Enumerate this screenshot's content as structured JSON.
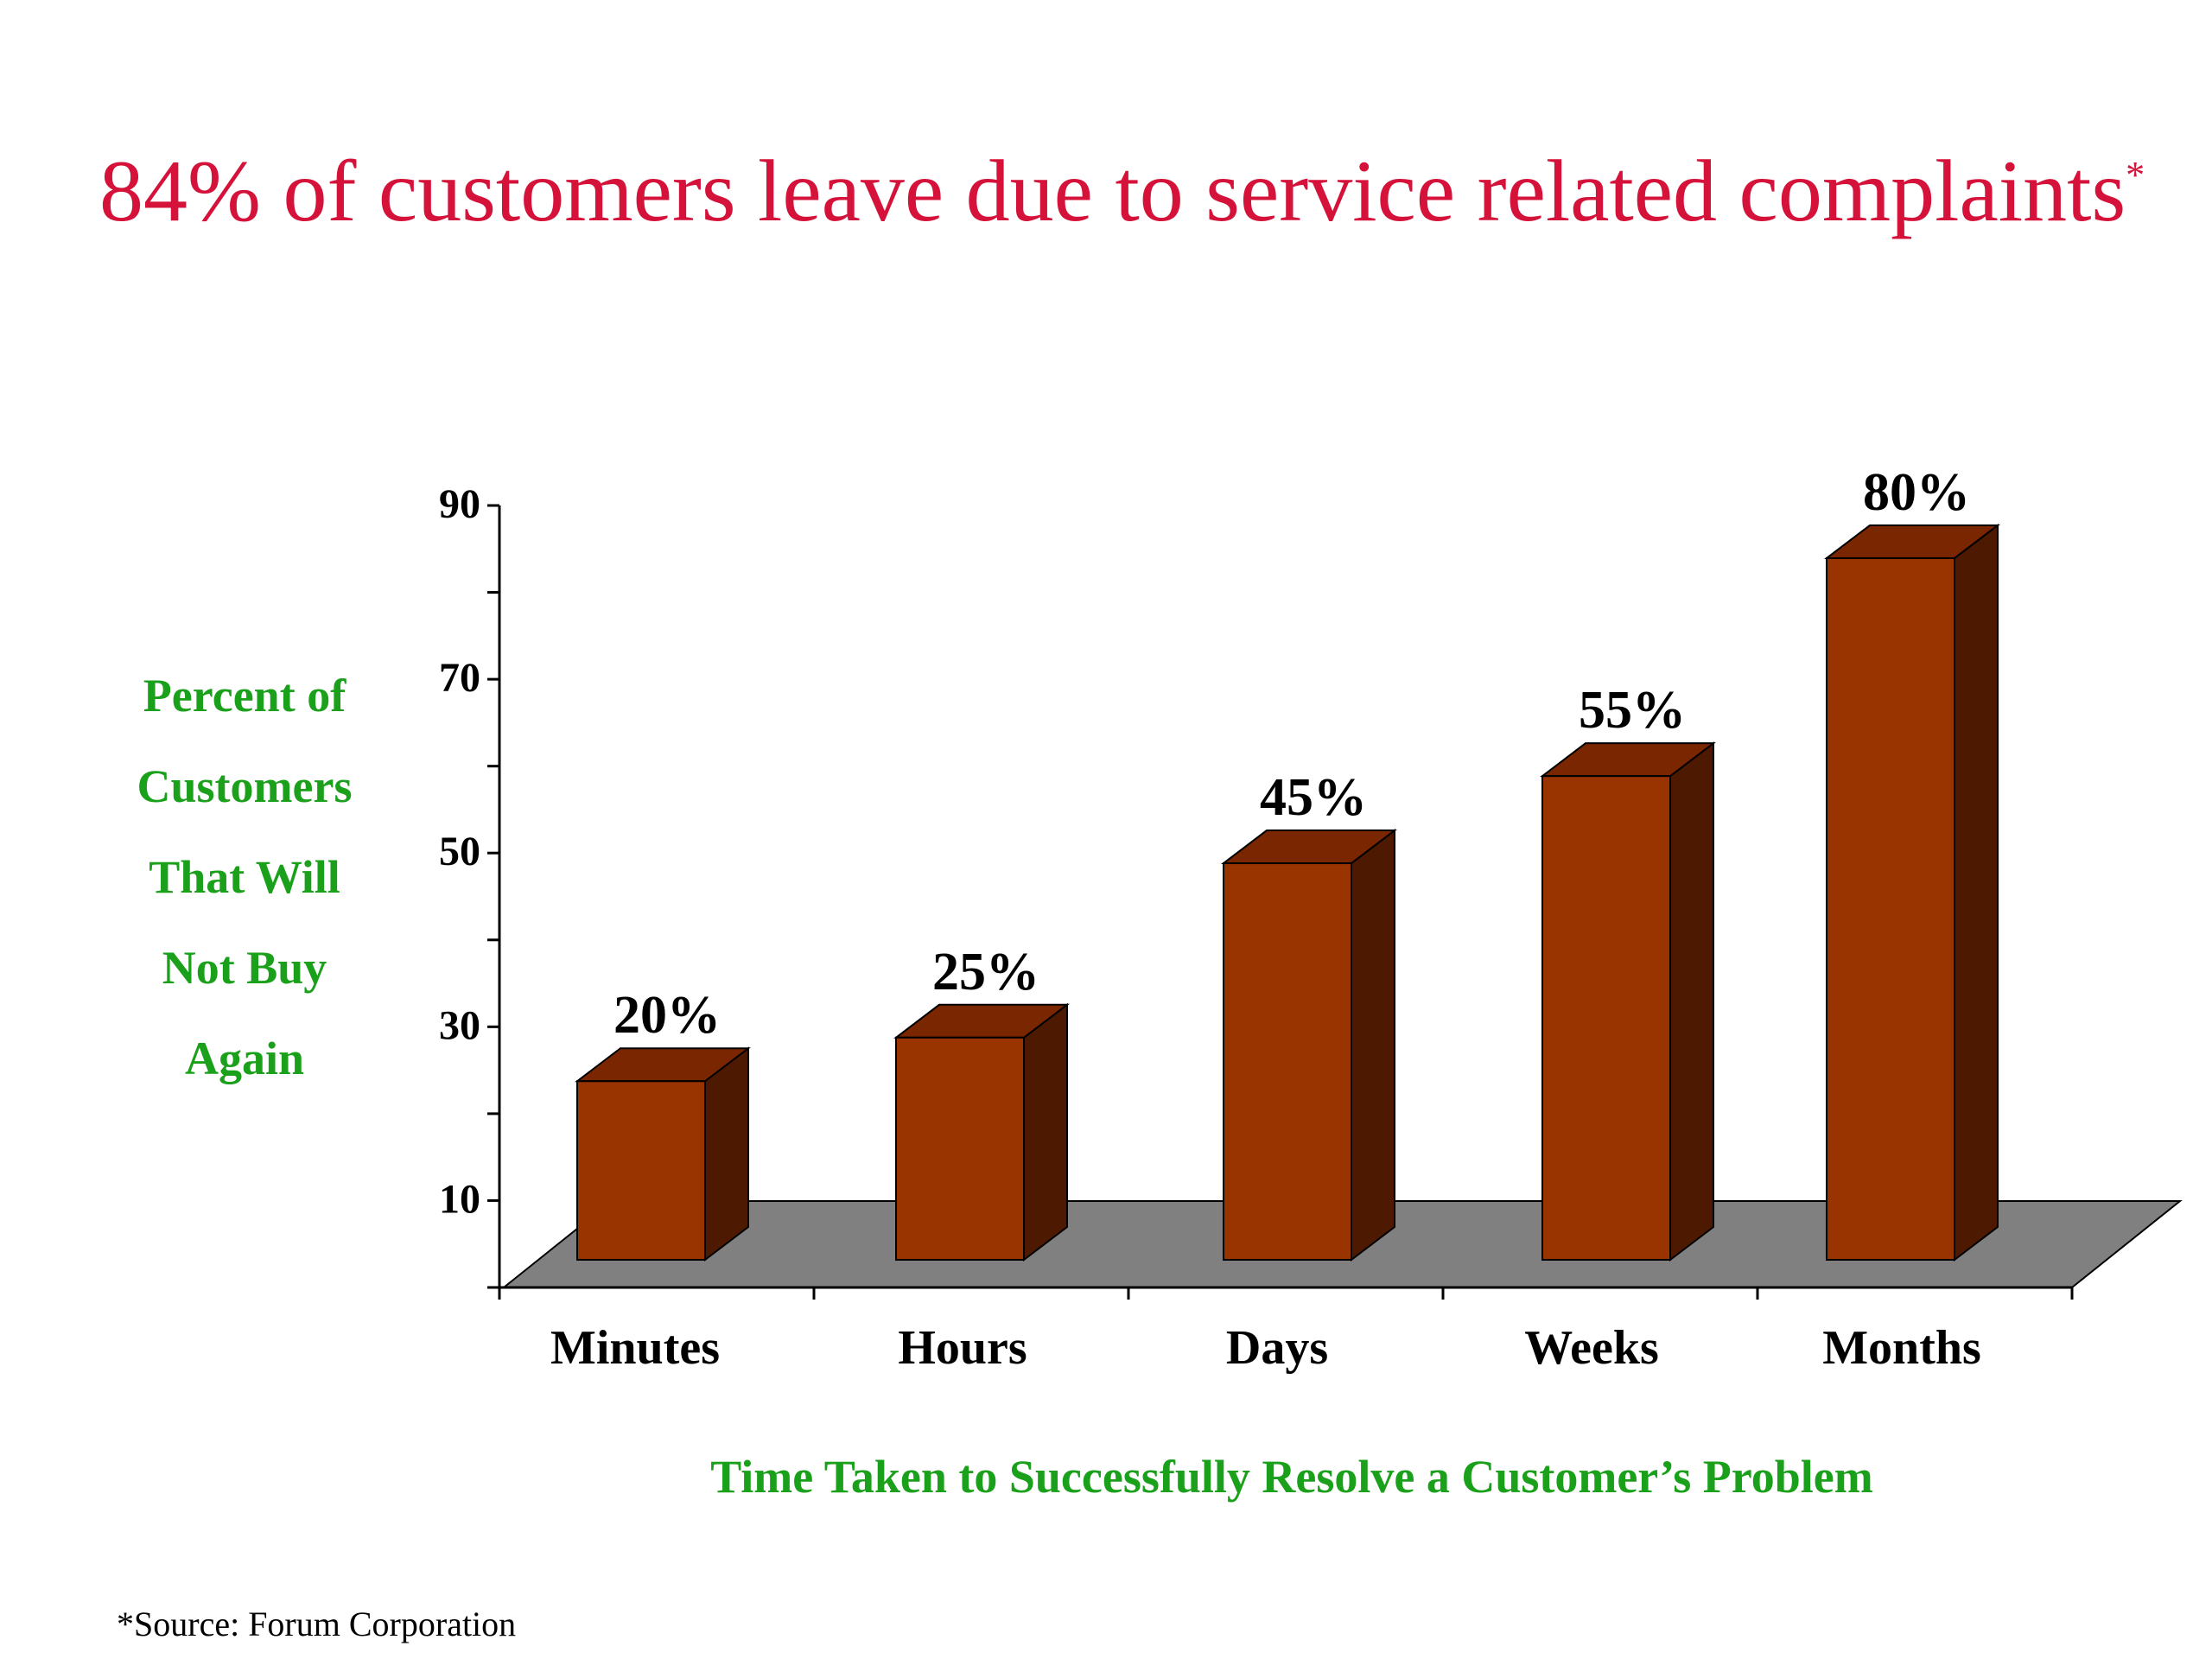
{
  "title": "84% of customers leave due to service related complaints",
  "title_marker": "*",
  "source": "*Source: Forum Corporation",
  "colors": {
    "title": "#d4123a",
    "axis_label": "#1aa01a",
    "bar_front": "#993300",
    "bar_top": "#7a2600",
    "bar_side": "#4d1900",
    "floor": "#808080",
    "text": "#000000"
  },
  "chart_data": {
    "type": "bar",
    "categories": [
      "Minutes",
      "Hours",
      "Days",
      "Weeks",
      "Months"
    ],
    "values": [
      20,
      25,
      45,
      55,
      80
    ],
    "data_labels": [
      "20%",
      "25%",
      "45%",
      "55%",
      "80%"
    ],
    "ylabel_lines": [
      "Percent of",
      "Customers",
      "That Will",
      "Not Buy",
      "Again"
    ],
    "xlabel": "Time Taken to Successfully Resolve a Customer’s Problem",
    "yticks": [
      10,
      30,
      50,
      70,
      90
    ],
    "ytick_labels": [
      "10",
      "30",
      "50",
      "70",
      "90"
    ],
    "ylim": [
      0,
      90
    ],
    "three_d": true,
    "grid": false,
    "legend": "none"
  }
}
